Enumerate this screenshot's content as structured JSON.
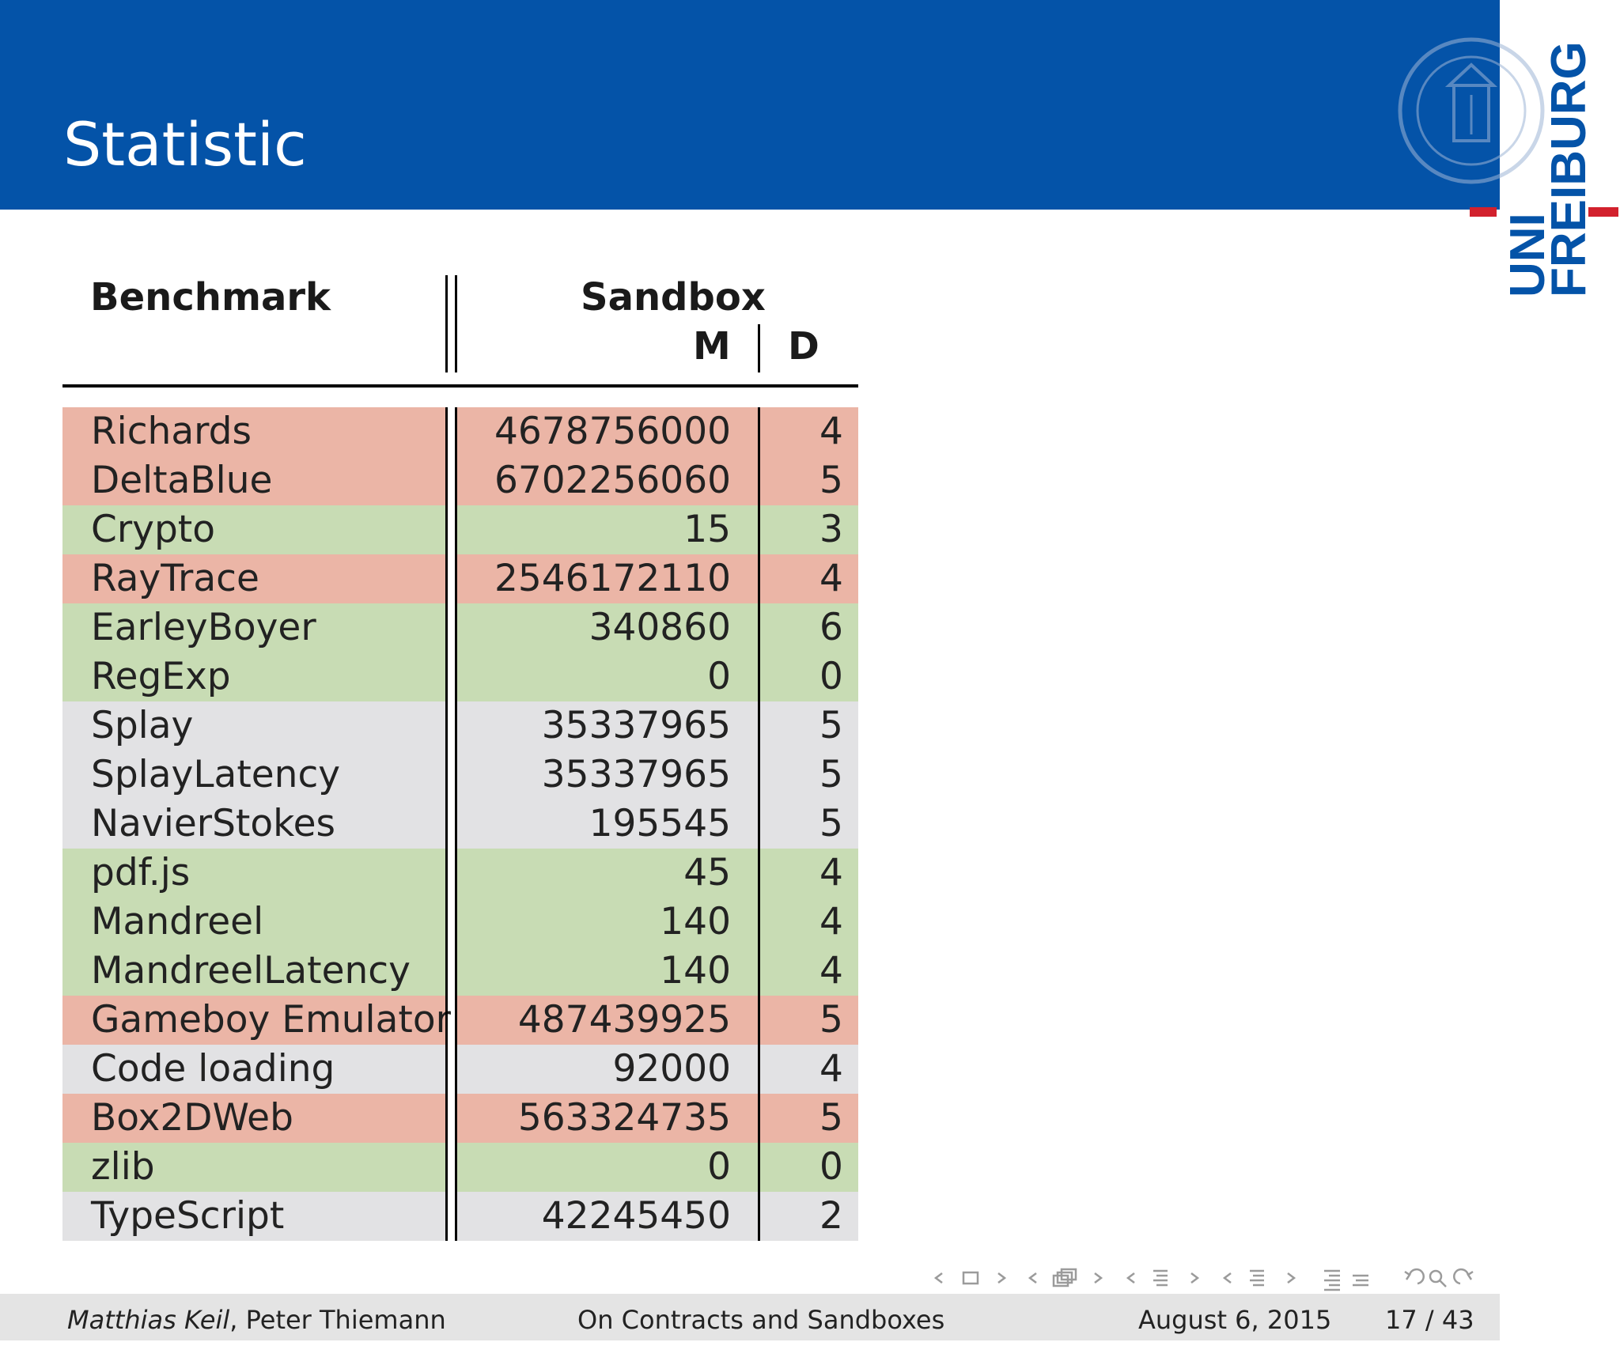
{
  "slide": {
    "title": "Statistic"
  },
  "logo": {
    "text_line1": "UNI",
    "text_line2": "FREIBURG",
    "colors": {
      "blue": "#0453a8",
      "red": "#d2212d"
    }
  },
  "table": {
    "headers": {
      "benchmark": "Benchmark",
      "sandbox": "Sandbox",
      "m": "M",
      "d": "D"
    },
    "row_colors": {
      "red": "#ebb5a6",
      "green": "#c8dcb4",
      "gray": "#e2e2e4"
    },
    "rows": [
      {
        "name": "Richards",
        "m": "4678756000",
        "d": "4",
        "color": "red"
      },
      {
        "name": "DeltaBlue",
        "m": "6702256060",
        "d": "5",
        "color": "red"
      },
      {
        "name": "Crypto",
        "m": "15",
        "d": "3",
        "color": "green"
      },
      {
        "name": "RayTrace",
        "m": "2546172110",
        "d": "4",
        "color": "red"
      },
      {
        "name": "EarleyBoyer",
        "m": "340860",
        "d": "6",
        "color": "green"
      },
      {
        "name": "RegExp",
        "m": "0",
        "d": "0",
        "color": "green"
      },
      {
        "name": "Splay",
        "m": "35337965",
        "d": "5",
        "color": "gray"
      },
      {
        "name": "SplayLatency",
        "m": "35337965",
        "d": "5",
        "color": "gray"
      },
      {
        "name": "NavierStokes",
        "m": "195545",
        "d": "5",
        "color": "gray"
      },
      {
        "name": "pdf.js",
        "m": "45",
        "d": "4",
        "color": "green"
      },
      {
        "name": "Mandreel",
        "m": "140",
        "d": "4",
        "color": "green"
      },
      {
        "name": "MandreelLatency",
        "m": "140",
        "d": "4",
        "color": "green"
      },
      {
        "name": "Gameboy Emulator",
        "m": "487439925",
        "d": "5",
        "color": "red"
      },
      {
        "name": "Code loading",
        "m": "92000",
        "d": "4",
        "color": "gray"
      },
      {
        "name": "Box2DWeb",
        "m": "563324735",
        "d": "5",
        "color": "red"
      },
      {
        "name": "zlib",
        "m": "0",
        "d": "0",
        "color": "green"
      },
      {
        "name": "TypeScript",
        "m": "42245450",
        "d": "2",
        "color": "gray"
      }
    ]
  },
  "footer": {
    "author_italic": "Matthias Keil",
    "author_rest": ", Peter Thiemann",
    "talk_title": "On Contracts and Sandboxes",
    "date": "August 6, 2015",
    "page": "17 / 43"
  }
}
